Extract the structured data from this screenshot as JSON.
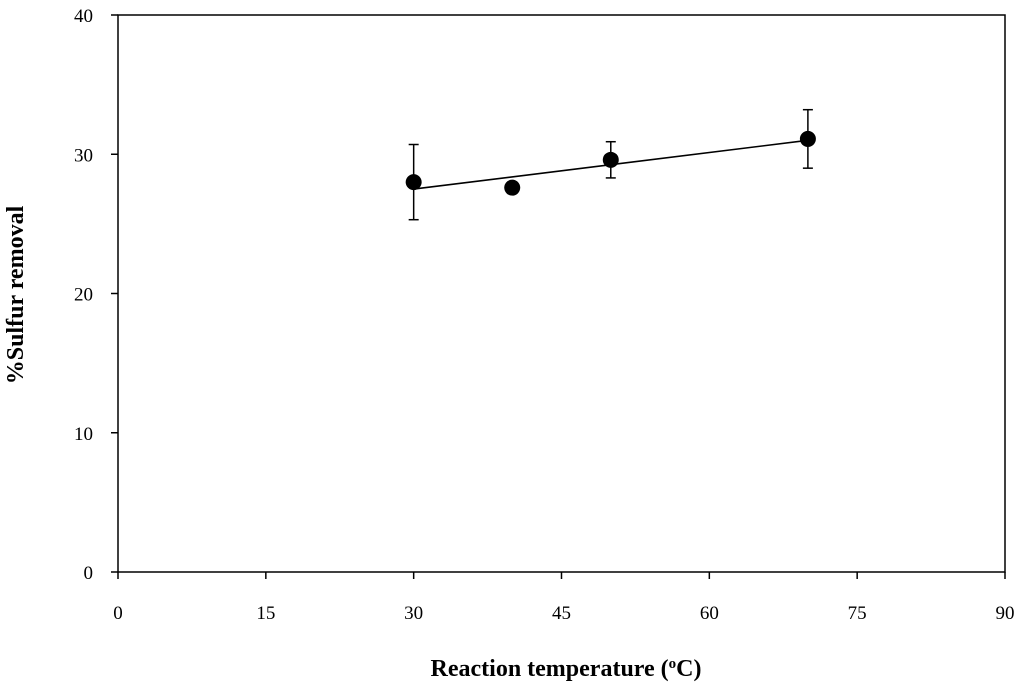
{
  "chart_data": {
    "type": "scatter",
    "title": "",
    "xlabel": "Reaction temperature (",
    "xlabel_sup": "o",
    "xlabel_suffix": "C)",
    "ylabel": "%Sulfur removal",
    "xlim": [
      0,
      90
    ],
    "ylim": [
      0,
      40
    ],
    "x_ticks": [
      0,
      15,
      30,
      45,
      60,
      75,
      90
    ],
    "y_ticks": [
      0,
      10,
      20,
      30,
      40
    ],
    "grid": false,
    "legend": false,
    "series": [
      {
        "x": [
          30,
          40,
          50,
          70
        ],
        "y": [
          28.0,
          27.6,
          29.6,
          31.1
        ],
        "error": [
          2.7,
          0.4,
          1.3,
          2.1
        ],
        "marker": "filled-circle",
        "color": "#000000"
      }
    ],
    "trendline": {
      "type": "linear",
      "x": [
        30,
        70
      ],
      "y": [
        27.5,
        31.0
      ]
    }
  }
}
